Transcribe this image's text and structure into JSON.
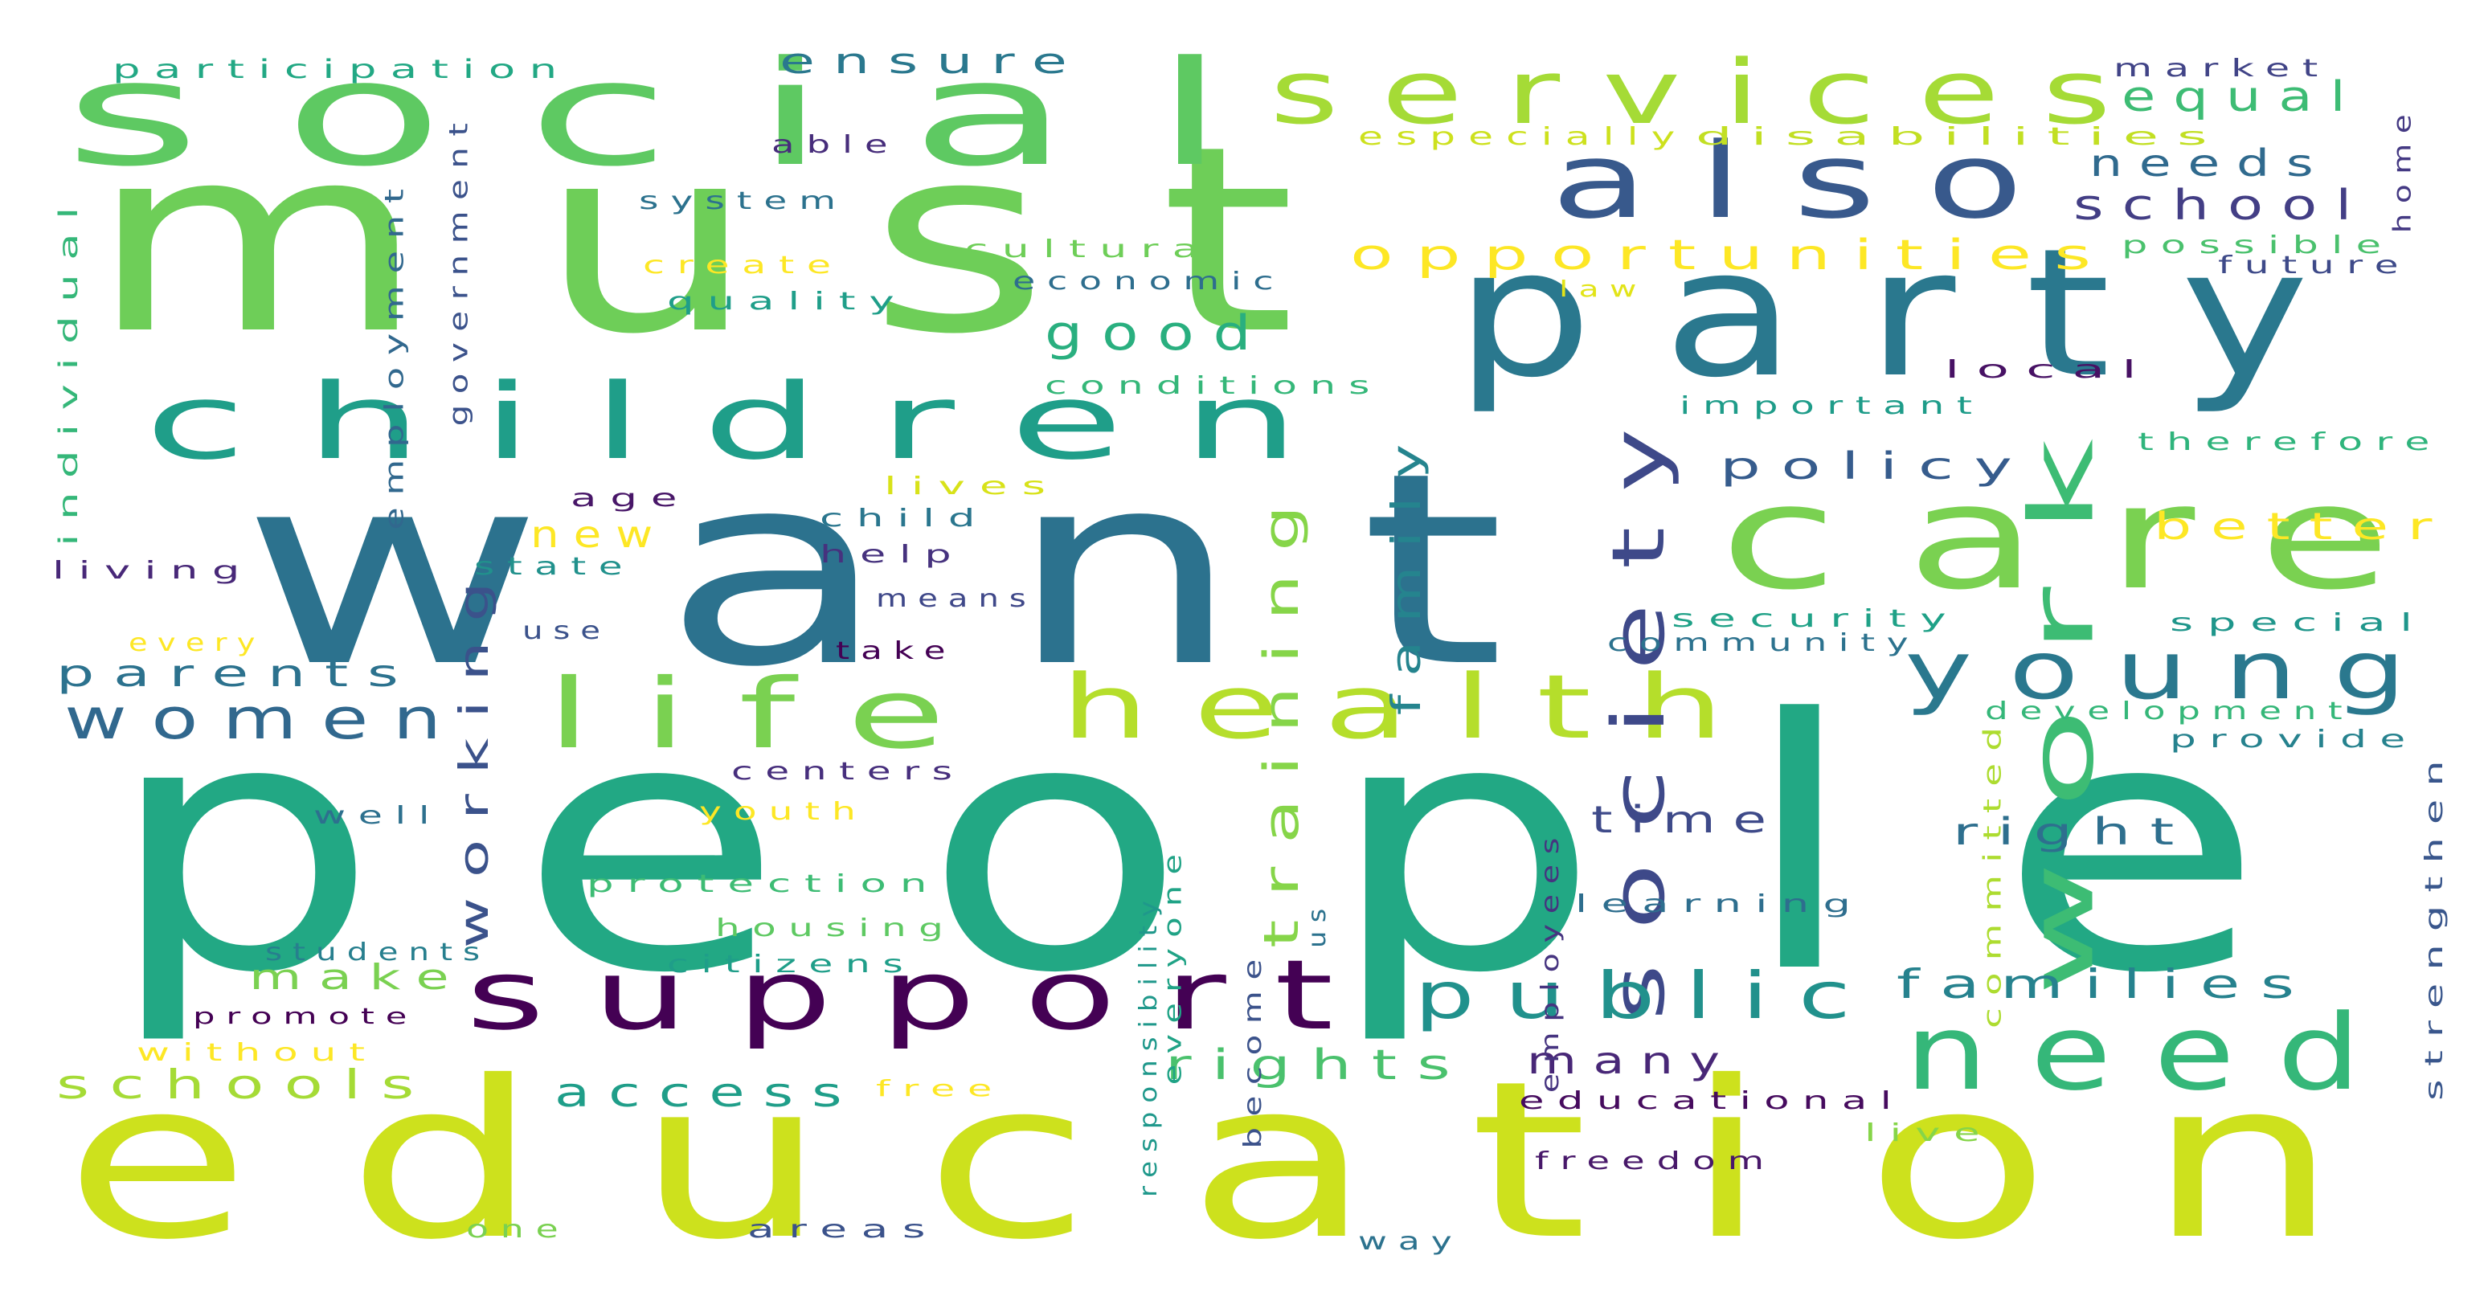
{
  "words": [
    {
      "text": "people",
      "color": "#22a884"
    },
    {
      "text": "education",
      "color": "#cde11d"
    },
    {
      "text": "want",
      "color": "#2c728e"
    },
    {
      "text": "must",
      "color": "#6ece58"
    },
    {
      "text": "party",
      "color": "#2a788e"
    },
    {
      "text": "social",
      "color": "#5ec962"
    },
    {
      "text": "children",
      "color": "#1f9e89"
    },
    {
      "text": "care",
      "color": "#7ad151"
    },
    {
      "text": "support",
      "color": "#440154"
    },
    {
      "text": "services",
      "color": "#a5db36"
    },
    {
      "text": "life",
      "color": "#7ad151"
    },
    {
      "text": "health",
      "color": "#b5de2b"
    },
    {
      "text": "also",
      "color": "#38598c"
    },
    {
      "text": "young",
      "color": "#2a788e"
    },
    {
      "text": "need",
      "color": "#35b779"
    },
    {
      "text": "work",
      "color": "#3dbc74"
    },
    {
      "text": "society",
      "color": "#3e4989"
    },
    {
      "text": "public",
      "color": "#21918c"
    },
    {
      "text": "women",
      "color": "#31688e"
    },
    {
      "text": "families",
      "color": "#26828e"
    },
    {
      "text": "training",
      "color": "#86d549"
    },
    {
      "text": "working",
      "color": "#3b528b"
    },
    {
      "text": "family",
      "color": "#25848e"
    },
    {
      "text": "opportunities",
      "color": "#fde725"
    },
    {
      "text": "schools",
      "color": "#a5db36"
    },
    {
      "text": "parents",
      "color": "#2c728e"
    },
    {
      "text": "good",
      "color": "#29af7f"
    },
    {
      "text": "access",
      "color": "#1f9e89"
    },
    {
      "text": "rights",
      "color": "#4ac16d"
    },
    {
      "text": "school",
      "color": "#433e85"
    },
    {
      "text": "equal",
      "color": "#3dbc74"
    },
    {
      "text": "needs",
      "color": "#306a8e"
    },
    {
      "text": "policy",
      "color": "#365c8d"
    },
    {
      "text": "better",
      "color": "#fde725"
    },
    {
      "text": "right",
      "color": "#2e6f8e"
    },
    {
      "text": "time",
      "color": "#3e4a89"
    },
    {
      "text": "many",
      "color": "#482777"
    },
    {
      "text": "make",
      "color": "#7ad151"
    },
    {
      "text": "new",
      "color": "#fde725"
    },
    {
      "text": "ensure",
      "color": "#2a788e"
    },
    {
      "text": "participation",
      "color": "#22a884"
    },
    {
      "text": "government",
      "color": "#3b528b"
    },
    {
      "text": "employment",
      "color": "#31688e"
    },
    {
      "text": "individual",
      "color": "#35b779"
    },
    {
      "text": "living",
      "color": "#482878"
    },
    {
      "text": "able",
      "color": "#472d7b"
    },
    {
      "text": "system",
      "color": "#2c728e"
    },
    {
      "text": "create",
      "color": "#fde725"
    },
    {
      "text": "quality",
      "color": "#1f9e89"
    },
    {
      "text": "cultural",
      "color": "#6ece58"
    },
    {
      "text": "economic",
      "color": "#2e6e8e"
    },
    {
      "text": "conditions",
      "color": "#35b779"
    },
    {
      "text": "especially",
      "color": "#cde11d"
    },
    {
      "text": "disabilities",
      "color": "#c2df23"
    },
    {
      "text": "market",
      "color": "#414487"
    },
    {
      "text": "home",
      "color": "#443983"
    },
    {
      "text": "possible",
      "color": "#4ac16d"
    },
    {
      "text": "future",
      "color": "#3e4a89"
    },
    {
      "text": "law",
      "color": "#e2e418"
    },
    {
      "text": "local",
      "color": "#471164"
    },
    {
      "text": "important",
      "color": "#1e9c89"
    },
    {
      "text": "therefore",
      "color": "#2fb47c"
    },
    {
      "text": "age",
      "color": "#481668"
    },
    {
      "text": "lives",
      "color": "#d8e219"
    },
    {
      "text": "child",
      "color": "#2a768e"
    },
    {
      "text": "state",
      "color": "#21918c"
    },
    {
      "text": "help",
      "color": "#46327e"
    },
    {
      "text": "means",
      "color": "#3f4889"
    },
    {
      "text": "use",
      "color": "#3b528b"
    },
    {
      "text": "take",
      "color": "#440154"
    },
    {
      "text": "every",
      "color": "#fde725"
    },
    {
      "text": "security",
      "color": "#1fa187"
    },
    {
      "text": "community",
      "color": "#2c728e"
    },
    {
      "text": "special",
      "color": "#1f968b"
    },
    {
      "text": "development",
      "color": "#35b779"
    },
    {
      "text": "provide",
      "color": "#26828e"
    },
    {
      "text": "responsibility",
      "color": "#1f988b"
    },
    {
      "text": "everyone",
      "color": "#20a386"
    },
    {
      "text": "become",
      "color": "#3b528b"
    },
    {
      "text": "us",
      "color": "#2c728e"
    },
    {
      "text": "employees",
      "color": "#463480"
    },
    {
      "text": "committed",
      "color": "#addc30"
    },
    {
      "text": "strengthen",
      "color": "#39568c"
    },
    {
      "text": "centers",
      "color": "#472f7d"
    },
    {
      "text": "youth",
      "color": "#fde725"
    },
    {
      "text": "well",
      "color": "#2d708e"
    },
    {
      "text": "protection",
      "color": "#3dbc74"
    },
    {
      "text": "housing",
      "color": "#5ec962"
    },
    {
      "text": "students",
      "color": "#277f8e"
    },
    {
      "text": "citizens",
      "color": "#1f9e89"
    },
    {
      "text": "promote",
      "color": "#440154"
    },
    {
      "text": "without",
      "color": "#fde725"
    },
    {
      "text": "free",
      "color": "#fde725"
    },
    {
      "text": "learning",
      "color": "#2e6e8e"
    },
    {
      "text": "educational",
      "color": "#460b5e"
    },
    {
      "text": "live",
      "color": "#86d549"
    },
    {
      "text": "freedom",
      "color": "#48186a"
    },
    {
      "text": "one",
      "color": "#7ad151"
    },
    {
      "text": "areas",
      "color": "#3b528b"
    },
    {
      "text": "way",
      "color": "#2c728e"
    }
  ]
}
